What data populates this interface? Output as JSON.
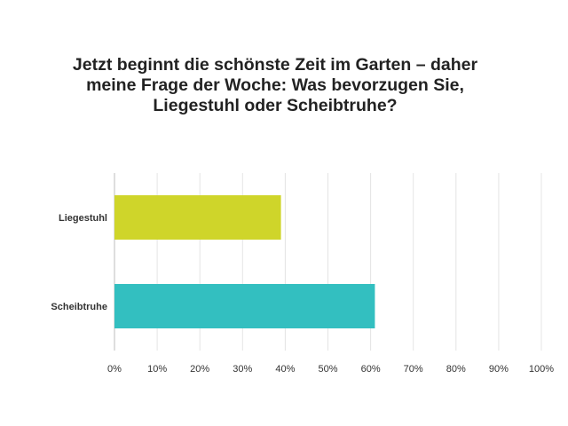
{
  "chart_data": {
    "type": "bar",
    "orientation": "horizontal",
    "title": "Jetzt beginnt die schönste Zeit im Garten – daher meine Frage der Woche: Was bevorzugen Sie, Liegestuhl oder Scheibtruhe?",
    "categories": [
      "Liegestuhl",
      "Scheibtruhe"
    ],
    "values": [
      39,
      61
    ],
    "colors": [
      "#cfd52a",
      "#33bfc0"
    ],
    "xlim": [
      0,
      100
    ],
    "xticks": [
      "0%",
      "10%",
      "20%",
      "30%",
      "40%",
      "50%",
      "60%",
      "70%",
      "80%",
      "90%",
      "100%"
    ],
    "grid": true,
    "xlabel": "",
    "ylabel": ""
  }
}
